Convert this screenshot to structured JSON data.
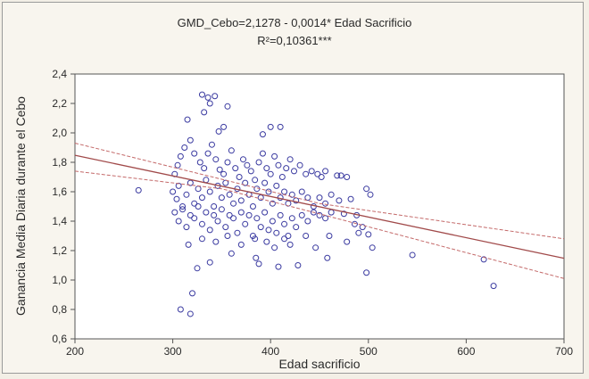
{
  "chart_data": {
    "type": "scatter",
    "title": "GMD_Cebo=2,1278 - 0,0014* Edad Sacrificio",
    "subtitle": "R²=0,10361***",
    "xlabel": "Edad sacrificio",
    "ylabel": "Ganancia Media Diaria durante el Cebo",
    "xlim": [
      200,
      700
    ],
    "ylim": [
      0.6,
      2.4
    ],
    "xticks": [
      "200",
      "300",
      "400",
      "500",
      "600",
      "700"
    ],
    "xtick_values": [
      200,
      300,
      400,
      500,
      600,
      700
    ],
    "yticks": [
      "0,6",
      "0,8",
      "1,0",
      "1,2",
      "1,4",
      "1,6",
      "1,8",
      "2,0",
      "2,2",
      "2,4"
    ],
    "ytick_values": [
      0.6,
      0.8,
      1.0,
      1.2,
      1.4,
      1.6,
      1.8,
      2.0,
      2.2,
      2.4
    ],
    "grid": false,
    "regression": {
      "intercept": 2.1278,
      "slope": -0.0014
    },
    "confidence_band": {
      "upper": [
        [
          200,
          1.93
        ],
        [
          350,
          1.685
        ],
        [
          450,
          1.52
        ],
        [
          700,
          1.28
        ]
      ],
      "lower": [
        [
          200,
          1.74
        ],
        [
          350,
          1.62
        ],
        [
          450,
          1.45
        ],
        [
          700,
          1.01
        ]
      ]
    },
    "colors": {
      "points": "#3a3aa0",
      "fit": "#a14a4a",
      "band": "#c46a6a",
      "axis": "#555555"
    },
    "points": [
      [
        265,
        1.61
      ],
      [
        308,
        0.8
      ],
      [
        318,
        0.77
      ],
      [
        320,
        0.91
      ],
      [
        325,
        1.08
      ],
      [
        338,
        1.12
      ],
      [
        360,
        1.18
      ],
      [
        385,
        1.15
      ],
      [
        388,
        1.11
      ],
      [
        408,
        1.09
      ],
      [
        428,
        1.1
      ],
      [
        458,
        1.15
      ],
      [
        498,
        1.05
      ],
      [
        545,
        1.17
      ],
      [
        618,
        1.14
      ],
      [
        628,
        0.96
      ],
      [
        330,
        2.26
      ],
      [
        336,
        2.24
      ],
      [
        343,
        2.25
      ],
      [
        338,
        2.2
      ],
      [
        356,
        2.18
      ],
      [
        332,
        2.14
      ],
      [
        315,
        2.09
      ],
      [
        352,
        2.04
      ],
      [
        347,
        2.01
      ],
      [
        400,
        2.04
      ],
      [
        410,
        2.04
      ],
      [
        392,
        1.99
      ],
      [
        302,
        1.72
      ],
      [
        305,
        1.78
      ],
      [
        308,
        1.84
      ],
      [
        312,
        1.9
      ],
      [
        318,
        1.95
      ],
      [
        322,
        1.86
      ],
      [
        328,
        1.8
      ],
      [
        332,
        1.76
      ],
      [
        336,
        1.86
      ],
      [
        340,
        1.92
      ],
      [
        344,
        1.82
      ],
      [
        348,
        1.75
      ],
      [
        352,
        1.72
      ],
      [
        356,
        1.8
      ],
      [
        360,
        1.88
      ],
      [
        364,
        1.76
      ],
      [
        368,
        1.7
      ],
      [
        372,
        1.82
      ],
      [
        376,
        1.78
      ],
      [
        380,
        1.74
      ],
      [
        384,
        1.68
      ],
      [
        388,
        1.8
      ],
      [
        392,
        1.86
      ],
      [
        396,
        1.76
      ],
      [
        400,
        1.72
      ],
      [
        404,
        1.84
      ],
      [
        408,
        1.78
      ],
      [
        412,
        1.7
      ],
      [
        416,
        1.76
      ],
      [
        420,
        1.82
      ],
      [
        424,
        1.74
      ],
      [
        430,
        1.78
      ],
      [
        436,
        1.72
      ],
      [
        442,
        1.74
      ],
      [
        448,
        1.72
      ],
      [
        452,
        1.7
      ],
      [
        456,
        1.74
      ],
      [
        468,
        1.71
      ],
      [
        472,
        1.71
      ],
      [
        478,
        1.7
      ],
      [
        300,
        1.6
      ],
      [
        304,
        1.55
      ],
      [
        306,
        1.64
      ],
      [
        310,
        1.5
      ],
      [
        314,
        1.58
      ],
      [
        318,
        1.66
      ],
      [
        322,
        1.52
      ],
      [
        326,
        1.62
      ],
      [
        330,
        1.56
      ],
      [
        334,
        1.68
      ],
      [
        338,
        1.6
      ],
      [
        342,
        1.5
      ],
      [
        346,
        1.64
      ],
      [
        350,
        1.56
      ],
      [
        354,
        1.66
      ],
      [
        358,
        1.58
      ],
      [
        362,
        1.52
      ],
      [
        366,
        1.62
      ],
      [
        370,
        1.54
      ],
      [
        374,
        1.66
      ],
      [
        378,
        1.58
      ],
      [
        382,
        1.5
      ],
      [
        386,
        1.62
      ],
      [
        390,
        1.56
      ],
      [
        394,
        1.66
      ],
      [
        398,
        1.6
      ],
      [
        402,
        1.52
      ],
      [
        406,
        1.64
      ],
      [
        410,
        1.56
      ],
      [
        414,
        1.6
      ],
      [
        418,
        1.52
      ],
      [
        422,
        1.58
      ],
      [
        426,
        1.54
      ],
      [
        432,
        1.6
      ],
      [
        438,
        1.56
      ],
      [
        444,
        1.5
      ],
      [
        450,
        1.56
      ],
      [
        456,
        1.52
      ],
      [
        462,
        1.58
      ],
      [
        470,
        1.54
      ],
      [
        482,
        1.55
      ],
      [
        498,
        1.62
      ],
      [
        502,
        1.58
      ],
      [
        302,
        1.46
      ],
      [
        306,
        1.4
      ],
      [
        310,
        1.48
      ],
      [
        314,
        1.36
      ],
      [
        318,
        1.44
      ],
      [
        322,
        1.42
      ],
      [
        326,
        1.5
      ],
      [
        330,
        1.38
      ],
      [
        334,
        1.46
      ],
      [
        338,
        1.34
      ],
      [
        342,
        1.44
      ],
      [
        346,
        1.4
      ],
      [
        350,
        1.48
      ],
      [
        354,
        1.36
      ],
      [
        358,
        1.44
      ],
      [
        362,
        1.42
      ],
      [
        366,
        1.32
      ],
      [
        370,
        1.46
      ],
      [
        374,
        1.38
      ],
      [
        378,
        1.44
      ],
      [
        382,
        1.3
      ],
      [
        386,
        1.42
      ],
      [
        390,
        1.36
      ],
      [
        394,
        1.46
      ],
      [
        398,
        1.34
      ],
      [
        402,
        1.4
      ],
      [
        406,
        1.32
      ],
      [
        410,
        1.44
      ],
      [
        414,
        1.38
      ],
      [
        418,
        1.3
      ],
      [
        422,
        1.42
      ],
      [
        426,
        1.36
      ],
      [
        432,
        1.44
      ],
      [
        438,
        1.4
      ],
      [
        444,
        1.46
      ],
      [
        450,
        1.44
      ],
      [
        456,
        1.42
      ],
      [
        462,
        1.46
      ],
      [
        475,
        1.45
      ],
      [
        488,
        1.44
      ],
      [
        500,
        1.31
      ],
      [
        316,
        1.24
      ],
      [
        330,
        1.28
      ],
      [
        344,
        1.26
      ],
      [
        356,
        1.3
      ],
      [
        370,
        1.24
      ],
      [
        384,
        1.28
      ],
      [
        396,
        1.26
      ],
      [
        404,
        1.22
      ],
      [
        414,
        1.28
      ],
      [
        420,
        1.24
      ],
      [
        436,
        1.3
      ],
      [
        446,
        1.22
      ],
      [
        460,
        1.3
      ],
      [
        478,
        1.26
      ],
      [
        486,
        1.38
      ],
      [
        490,
        1.32
      ],
      [
        494,
        1.36
      ],
      [
        504,
        1.22
      ]
    ]
  }
}
